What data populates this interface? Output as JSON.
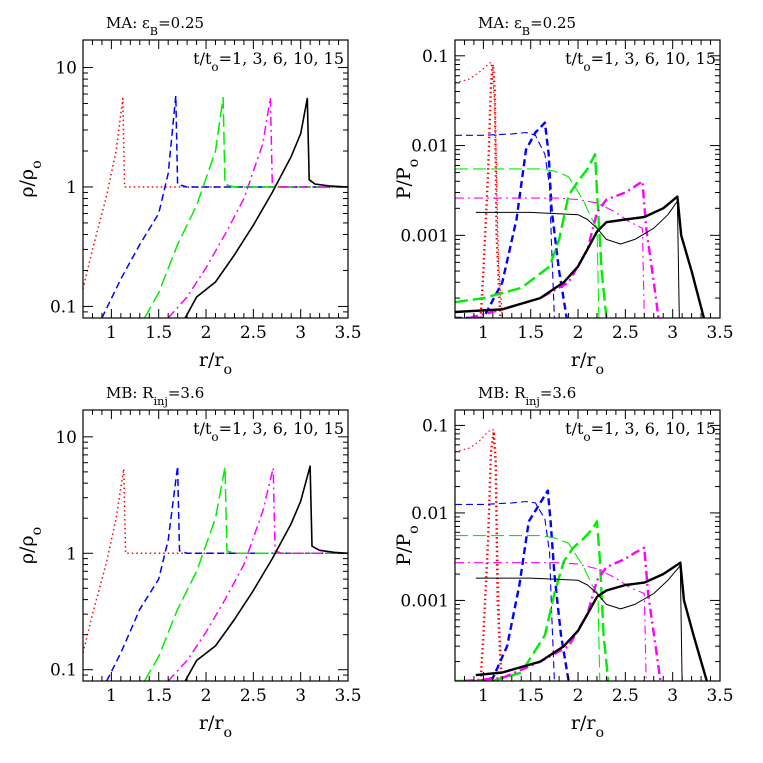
{
  "colors": {
    "background": "#ffffff",
    "axes": "#000000"
  },
  "chart_data": [
    {
      "type": "line",
      "title": "MA: ε_B=0.25",
      "time_label": "t/t_o=1, 3, 6, 10, 15",
      "xlabel": "r/r_o",
      "ylabel": "ρ/ρ_o",
      "xlim": [
        0.7,
        3.5
      ],
      "ylim": [
        0.08,
        17
      ],
      "yscale": "log",
      "xticks": [
        1,
        1.5,
        2,
        2.5,
        3,
        3.5
      ],
      "xtick_labels": [
        "1",
        "1.5",
        "2",
        "2.5",
        "3",
        "3.5"
      ],
      "yticks": [
        0.1,
        1,
        10
      ],
      "ytick_labels": [
        "0.1",
        "1",
        "10"
      ],
      "series": [
        {
          "color": "#ff0000",
          "dash": "dot",
          "width": 1.5,
          "x": [
            0.7,
            0.8,
            0.95,
            1.05,
            1.12,
            1.14,
            1.3,
            3.5
          ],
          "y": [
            0.14,
            0.3,
            0.85,
            2.0,
            5.5,
            1.0,
            1.0,
            1.0
          ]
        },
        {
          "color": "#0000ff",
          "dash": "dash",
          "width": 1.5,
          "x": [
            0.9,
            1.1,
            1.3,
            1.5,
            1.6,
            1.68,
            1.7,
            1.8,
            3.5
          ],
          "y": [
            0.08,
            0.17,
            0.33,
            0.6,
            1.3,
            5.8,
            1.05,
            1.0,
            1.0
          ]
        },
        {
          "color": "#00ee00",
          "dash": "longdash",
          "width": 1.5,
          "x": [
            1.35,
            1.5,
            1.7,
            1.9,
            2.1,
            2.18,
            2.2,
            2.3,
            3.5
          ],
          "y": [
            0.08,
            0.13,
            0.33,
            0.7,
            2.0,
            5.6,
            1.05,
            1.0,
            1.0
          ]
        },
        {
          "color": "#ff00ff",
          "dash": "dashdot",
          "width": 1.5,
          "x": [
            1.6,
            1.8,
            2.0,
            2.2,
            2.4,
            2.6,
            2.68,
            2.7,
            2.8,
            3.5
          ],
          "y": [
            0.08,
            0.12,
            0.21,
            0.4,
            0.8,
            2.3,
            5.6,
            1.05,
            1.0,
            1.0
          ]
        },
        {
          "color": "#000000",
          "dash": "solid",
          "width": 1.6,
          "x": [
            1.78,
            1.9,
            2.1,
            2.3,
            2.5,
            2.7,
            2.9,
            3.0,
            3.07,
            3.09,
            3.15,
            3.3,
            3.5
          ],
          "y": [
            0.08,
            0.12,
            0.16,
            0.27,
            0.48,
            0.9,
            1.8,
            2.8,
            5.5,
            1.15,
            1.06,
            1.02,
            1.0
          ]
        }
      ]
    },
    {
      "type": "line",
      "title": "MA: ε_B=0.25",
      "time_label": "t/t_o=1, 3, 6, 10, 15",
      "xlabel": "r/r_o",
      "ylabel": "P/P_o",
      "xlim": [
        0.7,
        3.5
      ],
      "ylim": [
        0.00012,
        0.15
      ],
      "yscale": "log",
      "xticks": [
        1,
        1.5,
        2,
        2.5,
        3,
        3.5
      ],
      "xtick_labels": [
        "1",
        "1.5",
        "2",
        "2.5",
        "3",
        "3.5"
      ],
      "yticks": [
        0.001,
        0.01,
        0.1
      ],
      "ytick_labels": [
        "0.001",
        "0.01",
        "0.1"
      ],
      "series": [
        {
          "color": "#ff0000",
          "dash": "dot",
          "width": 1.2,
          "x": [
            0.7,
            0.85,
            0.95,
            1.05,
            1.08,
            1.12,
            1.16,
            1.2
          ],
          "y": [
            0.05,
            0.055,
            0.065,
            0.08,
            0.085,
            0.03,
            0.0005,
            0.00012
          ]
        },
        {
          "color": "#ff0000",
          "dash": "dot",
          "width": 2.4,
          "x": [
            0.97,
            1.0,
            1.05,
            1.08,
            1.1,
            1.12,
            1.14,
            1.18
          ],
          "y": [
            0.00012,
            0.0004,
            0.005,
            0.05,
            0.08,
            0.04,
            0.001,
            0.00012
          ]
        },
        {
          "color": "#0000ff",
          "dash": "dash",
          "width": 1.1,
          "x": [
            0.7,
            1.0,
            1.3,
            1.45,
            1.55,
            1.65,
            1.7,
            1.72,
            1.75
          ],
          "y": [
            0.013,
            0.013,
            0.0135,
            0.014,
            0.013,
            0.008,
            0.0035,
            0.0008,
            0.00012
          ]
        },
        {
          "color": "#0000ff",
          "dash": "dash",
          "width": 2.4,
          "x": [
            0.7,
            1.0,
            1.2,
            1.35,
            1.45,
            1.55,
            1.65,
            1.69,
            1.72,
            1.8,
            1.88
          ],
          "y": [
            0.00012,
            0.00012,
            0.0003,
            0.0015,
            0.009,
            0.014,
            0.018,
            0.008,
            0.002,
            0.0004,
            0.00012
          ]
        },
        {
          "color": "#00ee00",
          "dash": "longdash",
          "width": 1.1,
          "x": [
            0.7,
            1.2,
            1.6,
            1.75,
            1.9,
            2.05,
            2.15,
            2.2,
            2.22
          ],
          "y": [
            0.0055,
            0.0055,
            0.0055,
            0.0052,
            0.0045,
            0.0025,
            0.0015,
            0.0012,
            0.00012
          ]
        },
        {
          "color": "#00ee00",
          "dash": "longdash",
          "width": 2.4,
          "x": [
            0.7,
            1.0,
            1.4,
            1.7,
            1.8,
            1.9,
            2.0,
            2.1,
            2.18,
            2.2,
            2.25,
            2.3
          ],
          "y": [
            0.00018,
            0.0002,
            0.00026,
            0.00045,
            0.0009,
            0.0028,
            0.004,
            0.0055,
            0.008,
            0.003,
            0.0004,
            0.00012
          ]
        },
        {
          "color": "#ff00ff",
          "dash": "dashdot",
          "width": 1.1,
          "x": [
            0.7,
            1.3,
            1.8,
            2.0,
            2.2,
            2.4,
            2.55,
            2.68,
            2.7
          ],
          "y": [
            0.0026,
            0.0026,
            0.0026,
            0.0025,
            0.0023,
            0.0018,
            0.0014,
            0.0012,
            0.00012
          ]
        },
        {
          "color": "#ff00ff",
          "dash": "dashdot",
          "width": 2.4,
          "x": [
            0.85,
            1.2,
            1.6,
            1.9,
            2.1,
            2.2,
            2.3,
            2.5,
            2.6,
            2.68,
            2.72,
            2.8,
            2.85
          ],
          "y": [
            0.00012,
            0.00015,
            0.0002,
            0.0003,
            0.0007,
            0.0018,
            0.0025,
            0.003,
            0.0035,
            0.004,
            0.0012,
            0.0003,
            0.00012
          ]
        },
        {
          "color": "#000000",
          "dash": "solid",
          "width": 1.0,
          "x": [
            0.92,
            1.5,
            2.0,
            2.1,
            2.2,
            2.3,
            2.45,
            2.6,
            2.8,
            2.95,
            3.05,
            3.07
          ],
          "y": [
            0.0018,
            0.0018,
            0.0017,
            0.0015,
            0.0012,
            0.0009,
            0.0008,
            0.0009,
            0.0012,
            0.0017,
            0.0024,
            0.00012
          ]
        },
        {
          "color": "#000000",
          "dash": "solid",
          "width": 2.4,
          "x": [
            0.7,
            1.2,
            1.6,
            1.85,
            2.0,
            2.1,
            2.2,
            2.3,
            2.5,
            2.7,
            2.9,
            3.05,
            3.09,
            3.2,
            3.33
          ],
          "y": [
            0.00014,
            0.00015,
            0.0002,
            0.0003,
            0.00045,
            0.0007,
            0.0011,
            0.0014,
            0.0015,
            0.0016,
            0.002,
            0.0027,
            0.001,
            0.0004,
            0.00012
          ]
        }
      ]
    },
    {
      "type": "line",
      "title": "MB: R_inj=3.6",
      "time_label": "t/t_o=1, 3, 6, 10, 15",
      "xlabel": "r/r_o",
      "ylabel": "ρ/ρ_o",
      "xlim": [
        0.7,
        3.5
      ],
      "ylim": [
        0.08,
        17
      ],
      "yscale": "log",
      "xticks": [
        1,
        1.5,
        2,
        2.5,
        3,
        3.5
      ],
      "xtick_labels": [
        "1",
        "1.5",
        "2",
        "2.5",
        "3",
        "3.5"
      ],
      "yticks": [
        0.1,
        1,
        10
      ],
      "ytick_labels": [
        "0.1",
        "1",
        "10"
      ],
      "series": [
        {
          "color": "#ff0000",
          "dash": "dot",
          "width": 1.5,
          "x": [
            0.7,
            0.8,
            0.95,
            1.05,
            1.13,
            1.15,
            1.3,
            3.5
          ],
          "y": [
            0.14,
            0.3,
            0.85,
            2.0,
            5.3,
            1.0,
            1.0,
            1.0
          ]
        },
        {
          "color": "#0000ff",
          "dash": "dash",
          "width": 1.5,
          "x": [
            0.95,
            1.1,
            1.3,
            1.5,
            1.6,
            1.7,
            1.72,
            1.8,
            3.5
          ],
          "y": [
            0.08,
            0.14,
            0.33,
            0.6,
            1.3,
            5.6,
            1.05,
            1.0,
            1.0
          ]
        },
        {
          "color": "#00ee00",
          "dash": "longdash",
          "width": 1.5,
          "x": [
            1.35,
            1.5,
            1.7,
            1.9,
            2.1,
            2.2,
            2.22,
            2.3,
            3.5
          ],
          "y": [
            0.08,
            0.13,
            0.33,
            0.7,
            2.0,
            5.5,
            1.05,
            1.0,
            1.0
          ]
        },
        {
          "color": "#ff00ff",
          "dash": "dashdot",
          "width": 1.5,
          "x": [
            1.6,
            1.8,
            2.0,
            2.2,
            2.4,
            2.6,
            2.71,
            2.73,
            2.8,
            3.5
          ],
          "y": [
            0.08,
            0.12,
            0.21,
            0.4,
            0.8,
            2.3,
            5.4,
            1.05,
            1.0,
            1.0
          ]
        },
        {
          "color": "#000000",
          "dash": "solid",
          "width": 1.6,
          "x": [
            1.78,
            1.9,
            2.1,
            2.3,
            2.5,
            2.7,
            2.9,
            3.0,
            3.1,
            3.12,
            3.2,
            3.35,
            3.5
          ],
          "y": [
            0.08,
            0.12,
            0.16,
            0.27,
            0.48,
            0.9,
            1.8,
            2.8,
            5.6,
            1.15,
            1.06,
            1.02,
            1.0
          ]
        }
      ]
    },
    {
      "type": "line",
      "title": "MB: R_inj=3.6",
      "time_label": "t/t_o=1, 3, 6, 10, 15",
      "xlabel": "r/r_o",
      "ylabel": "P/P_o",
      "xlim": [
        0.7,
        3.5
      ],
      "ylim": [
        0.00012,
        0.15
      ],
      "yscale": "log",
      "xticks": [
        1,
        1.5,
        2,
        2.5,
        3,
        3.5
      ],
      "xtick_labels": [
        "1",
        "1.5",
        "2",
        "2.5",
        "3",
        "3.5"
      ],
      "yticks": [
        0.001,
        0.01,
        0.1
      ],
      "ytick_labels": [
        "0.001",
        "0.01",
        "0.1"
      ],
      "series": [
        {
          "color": "#ff0000",
          "dash": "dot",
          "width": 1.2,
          "x": [
            0.7,
            0.85,
            0.95,
            1.05,
            1.1,
            1.13,
            1.17,
            1.2
          ],
          "y": [
            0.05,
            0.055,
            0.065,
            0.085,
            0.09,
            0.03,
            0.0005,
            0.00012
          ]
        },
        {
          "color": "#ff0000",
          "dash": "dot",
          "width": 2.4,
          "x": [
            0.97,
            1.0,
            1.05,
            1.08,
            1.11,
            1.13,
            1.15,
            1.19
          ],
          "y": [
            0.00012,
            0.0004,
            0.005,
            0.05,
            0.085,
            0.04,
            0.001,
            0.00012
          ]
        },
        {
          "color": "#0000ff",
          "dash": "dash",
          "width": 1.1,
          "x": [
            0.7,
            1.0,
            1.3,
            1.45,
            1.55,
            1.65,
            1.7,
            1.72,
            1.75
          ],
          "y": [
            0.0125,
            0.0125,
            0.013,
            0.0135,
            0.013,
            0.0085,
            0.0035,
            0.0008,
            0.00012
          ]
        },
        {
          "color": "#0000ff",
          "dash": "dash",
          "width": 2.4,
          "x": [
            0.95,
            1.1,
            1.25,
            1.38,
            1.48,
            1.58,
            1.68,
            1.71,
            1.75,
            1.82,
            1.9
          ],
          "y": [
            0.00012,
            0.00013,
            0.0003,
            0.0015,
            0.008,
            0.012,
            0.018,
            0.008,
            0.002,
            0.0004,
            0.00012
          ]
        },
        {
          "color": "#00ee00",
          "dash": "longdash",
          "width": 1.1,
          "x": [
            0.7,
            1.2,
            1.6,
            1.75,
            1.9,
            2.05,
            2.15,
            2.21,
            2.23
          ],
          "y": [
            0.0055,
            0.0055,
            0.0055,
            0.0052,
            0.0045,
            0.0025,
            0.0015,
            0.0012,
            0.00012
          ]
        },
        {
          "color": "#00ee00",
          "dash": "longdash",
          "width": 2.4,
          "x": [
            0.7,
            1.1,
            1.4,
            1.65,
            1.75,
            1.85,
            1.95,
            2.05,
            2.15,
            2.2,
            2.23,
            2.27,
            2.32
          ],
          "y": [
            0.00012,
            0.00012,
            0.00015,
            0.0004,
            0.0012,
            0.0028,
            0.004,
            0.005,
            0.0065,
            0.008,
            0.003,
            0.0004,
            0.00012
          ]
        },
        {
          "color": "#ff00ff",
          "dash": "dashdot",
          "width": 1.1,
          "x": [
            0.7,
            1.3,
            1.8,
            2.0,
            2.2,
            2.4,
            2.55,
            2.7,
            2.72
          ],
          "y": [
            0.0027,
            0.0027,
            0.0027,
            0.0026,
            0.0023,
            0.0018,
            0.0014,
            0.0012,
            0.00012
          ]
        },
        {
          "color": "#ff00ff",
          "dash": "dashdot",
          "width": 2.4,
          "x": [
            0.8,
            1.2,
            1.6,
            1.9,
            2.1,
            2.2,
            2.3,
            2.5,
            2.6,
            2.7,
            2.74,
            2.82,
            2.87
          ],
          "y": [
            0.00012,
            0.00013,
            0.0002,
            0.0003,
            0.0007,
            0.0017,
            0.0024,
            0.003,
            0.0035,
            0.004,
            0.0012,
            0.0003,
            0.00012
          ]
        },
        {
          "color": "#000000",
          "dash": "solid",
          "width": 1.0,
          "x": [
            0.92,
            1.5,
            2.0,
            2.1,
            2.2,
            2.3,
            2.45,
            2.6,
            2.8,
            2.95,
            3.08,
            3.1
          ],
          "y": [
            0.0018,
            0.0018,
            0.0017,
            0.0015,
            0.0012,
            0.0009,
            0.0008,
            0.0009,
            0.0012,
            0.0017,
            0.0025,
            0.00012
          ]
        },
        {
          "color": "#000000",
          "dash": "solid",
          "width": 2.4,
          "x": [
            0.92,
            1.2,
            1.6,
            1.85,
            2.0,
            2.1,
            2.2,
            2.3,
            2.5,
            2.7,
            2.9,
            3.08,
            3.12,
            3.22,
            3.36
          ],
          "y": [
            0.00014,
            0.00015,
            0.0002,
            0.0003,
            0.00045,
            0.0007,
            0.0011,
            0.0013,
            0.0015,
            0.0016,
            0.002,
            0.0027,
            0.001,
            0.0004,
            0.00012
          ]
        }
      ]
    }
  ]
}
